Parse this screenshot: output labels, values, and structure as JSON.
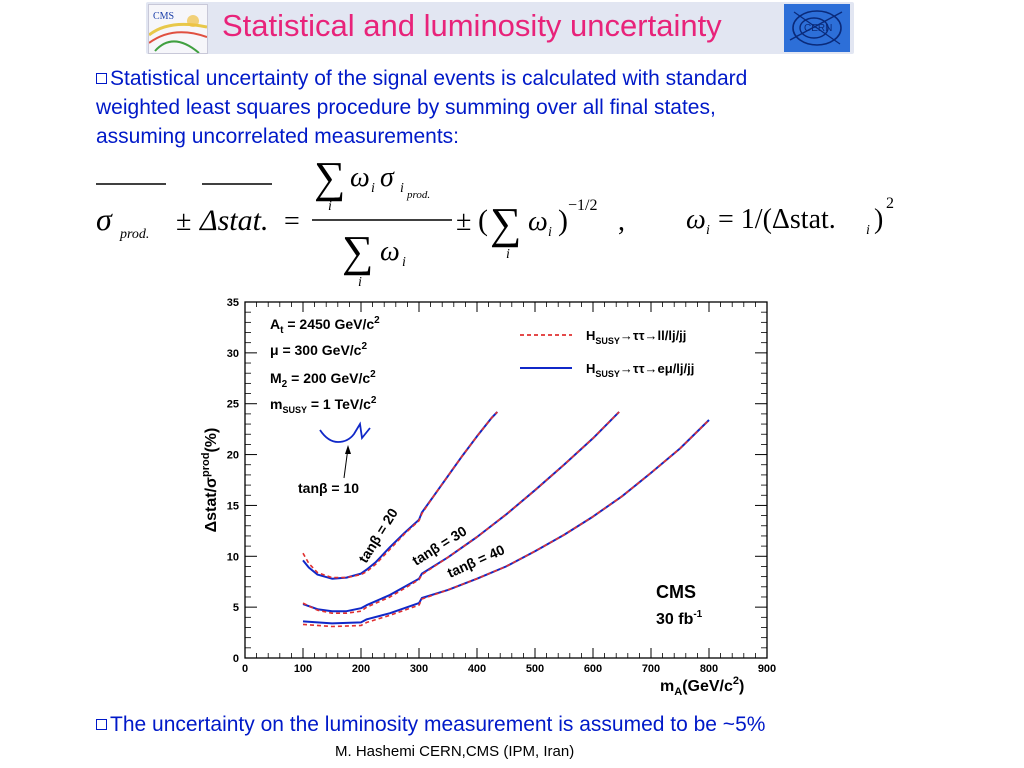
{
  "slide": {
    "title": "Statistical and luminosity uncertainty",
    "bullet1": "Statistical uncertainty of the signal events is calculated with standard weighted least squares procedure by summing over all final states, assuming uncorrelated measurements:",
    "bullet1_lines": [
      "Statistical uncertainty of the signal events is calculated with standard",
      "weighted least squares procedure by summing over all final states,",
      "assuming uncorrelated measurements:"
    ],
    "bullet2": "The uncertainty on the luminosity measurement is assumed to be ~5%",
    "footer": "M. Hashemi CERN,CMS (IPM, Iran)",
    "logo_left": "CMS",
    "logo_right": "CERN"
  },
  "formula": {
    "lhs_sigma": "σ",
    "lhs_sigma_sub": "prod.",
    "plusminus": "±",
    "delta_stat": "Δstat.",
    "equals": "=",
    "sum": "∑",
    "omega": "ω",
    "sigma": "σ",
    "sub_i": "i",
    "sub_i_prod": "prod.",
    "sum_index": "i",
    "paren_open": "(",
    "paren_close": ")",
    "exponent": "−1/2",
    "comma": ",",
    "rhs_def": "= 1/(Δstat.",
    "rhs_sub": "i",
    "rhs_close": ")",
    "rhs_exp": "2"
  },
  "chart_data": {
    "type": "line",
    "xlabel": "m_A(GeV/c^2)",
    "ylabel": "Δstat/σ^prod(%)",
    "xlim": [
      0,
      900
    ],
    "ylim": [
      0,
      35
    ],
    "xticks": [
      0,
      100,
      200,
      300,
      400,
      500,
      600,
      700,
      800,
      900
    ],
    "yticks": [
      0,
      5,
      10,
      15,
      20,
      25,
      30,
      35
    ],
    "grid": false,
    "legend": {
      "placement": "top-right",
      "entries": [
        {
          "label": "H_SUSY→ττ→ll/lj/jj",
          "style": "dashed",
          "color": "#e03030"
        },
        {
          "label": "H_SUSY→ττ→eμ/lj/jj",
          "style": "solid",
          "color": "#1028c8"
        }
      ]
    },
    "parameters": [
      "A_t = 2450 GeV/c^2",
      "μ = 300 GeV/c^2",
      "M_2 = 200 GeV/c^2",
      "m_SUSY = 1 TeV/c^2"
    ],
    "annotations": [
      "tanβ = 10",
      "tanβ = 20",
      "tanβ = 30",
      "tanβ = 40",
      "CMS",
      "30 fb^-1"
    ],
    "series": [
      {
        "name": "tanβ = 20",
        "style": "solid",
        "color": "#1028c8",
        "x": [
          100,
          110,
          125,
          150,
          175,
          200,
          210,
          225,
          250,
          275,
          300,
          305,
          325,
          350,
          375,
          400,
          425,
          435
        ],
        "y": [
          9.6,
          8.9,
          8.2,
          7.8,
          7.9,
          8.3,
          8.7,
          9.4,
          10.9,
          12.3,
          13.6,
          14.3,
          15.9,
          17.9,
          19.9,
          21.8,
          23.6,
          24.2
        ]
      },
      {
        "name": "tanβ = 20",
        "style": "dashed",
        "color": "#e03030",
        "x": [
          100,
          110,
          125,
          150,
          175,
          200,
          210,
          225,
          250,
          275,
          300,
          305,
          325,
          350,
          375,
          400,
          425,
          435
        ],
        "y": [
          10.3,
          9.3,
          8.4,
          7.9,
          7.9,
          8.2,
          8.5,
          9.2,
          10.7,
          12.2,
          13.5,
          14.2,
          15.9,
          17.9,
          19.9,
          21.8,
          23.6,
          24.2
        ]
      },
      {
        "name": "tanβ = 30",
        "style": "solid",
        "color": "#1028c8",
        "x": [
          100,
          125,
          150,
          175,
          200,
          210,
          250,
          300,
          305,
          350,
          400,
          450,
          500,
          550,
          600,
          645
        ],
        "y": [
          5.3,
          4.8,
          4.6,
          4.6,
          4.9,
          5.2,
          6.2,
          7.8,
          8.3,
          9.9,
          11.9,
          14.1,
          16.5,
          19.0,
          21.6,
          24.2
        ]
      },
      {
        "name": "tanβ = 30",
        "style": "dashed",
        "color": "#e03030",
        "x": [
          100,
          125,
          150,
          175,
          200,
          210,
          250,
          300,
          305,
          350,
          400,
          450,
          500,
          550,
          600,
          645
        ],
        "y": [
          5.4,
          4.7,
          4.4,
          4.4,
          4.6,
          5.0,
          6.0,
          7.7,
          8.2,
          9.9,
          11.9,
          14.1,
          16.5,
          19.0,
          21.6,
          24.2
        ]
      },
      {
        "name": "tanβ = 40",
        "style": "solid",
        "color": "#1028c8",
        "x": [
          100,
          150,
          200,
          210,
          250,
          300,
          305,
          350,
          400,
          450,
          500,
          550,
          600,
          650,
          700,
          750,
          800
        ],
        "y": [
          3.6,
          3.4,
          3.5,
          3.8,
          4.4,
          5.4,
          5.9,
          6.7,
          7.8,
          9.0,
          10.5,
          12.1,
          13.9,
          15.9,
          18.2,
          20.6,
          23.4
        ]
      },
      {
        "name": "tanβ = 40",
        "style": "dashed",
        "color": "#e03030",
        "x": [
          100,
          150,
          200,
          210,
          250,
          300,
          305,
          350,
          400,
          450,
          500,
          550,
          600,
          650,
          700,
          750,
          800
        ],
        "y": [
          3.3,
          3.1,
          3.2,
          3.5,
          4.2,
          5.2,
          5.8,
          6.7,
          7.8,
          9.0,
          10.5,
          12.1,
          13.9,
          15.9,
          18.2,
          20.6,
          23.4
        ]
      }
    ],
    "labels": {
      "ylabel_main": "Δstat/σ",
      "ylabel_sup": "prod",
      "ylabel_unit": "(%)",
      "xlabel_main": "m",
      "xlabel_sub": "A",
      "xlabel_unit": "(GeV/c",
      "xlabel_sup": "2",
      "xlabel_close": ")",
      "legend1_h": "H",
      "legend1_sub": "SUSY",
      "legend1_rest": "→ττ→ll/lj/jj",
      "legend2_h": "H",
      "legend2_sub": "SUSY",
      "legend2_rest": "→ττ→eμ/lj/jj",
      "param1_main": "A",
      "param1_sub": "t",
      "param1_rest": " = 2450 GeV/c",
      "param1_sup": "2",
      "param2_rest": "μ = 300 GeV/c",
      "param2_sup": "2",
      "param3_main": "M",
      "param3_sub": "2",
      "param3_rest": " = 200 GeV/c",
      "param3_sup": "2",
      "param4_main": "m",
      "param4_sub": "SUSY",
      "param4_rest": " = 1 TeV/c",
      "param4_sup": "2",
      "tan10": "tanβ = 10",
      "tan20": "tanβ = 20",
      "tan30": "tanβ = 30",
      "tan40": "tanβ = 40",
      "cms": "CMS",
      "lumi_main": "30 fb",
      "lumi_sup": "-1"
    }
  }
}
